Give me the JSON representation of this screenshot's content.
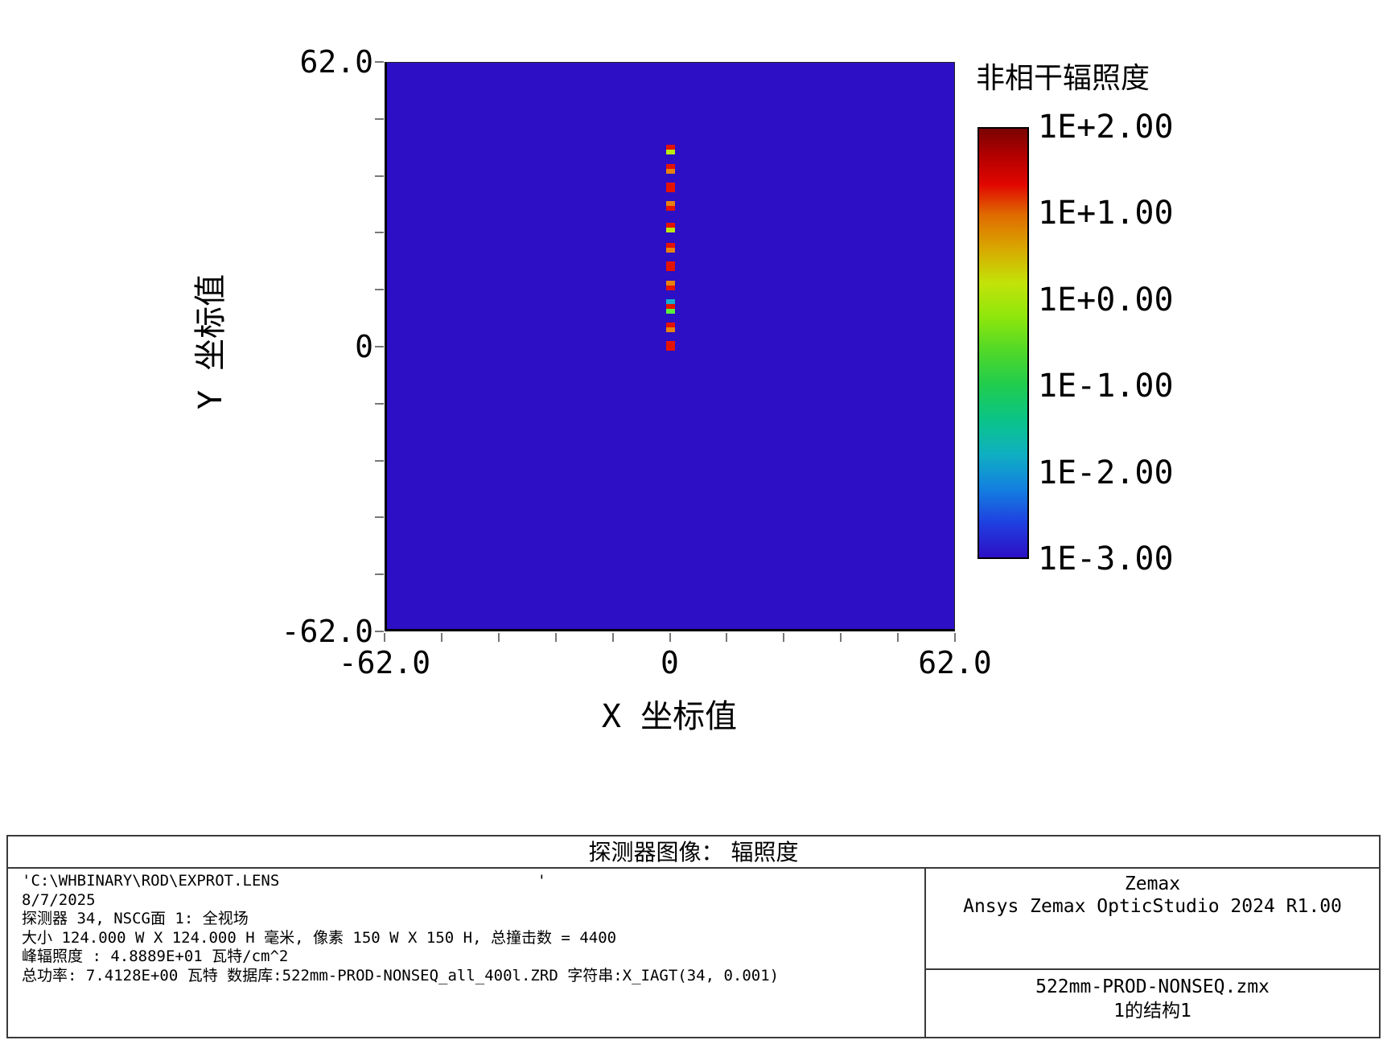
{
  "chart_data": {
    "type": "heatmap",
    "description": "Zemax detector image false-color irradiance map; uniform background below 1E-3 with a vertical column of bright spots near x=0 from y=0 to y=43 mm",
    "xlabel": "X 坐标值",
    "ylabel": "Y 坐标值",
    "xlim": [
      -62.0,
      62.0
    ],
    "ylim": [
      -62.0,
      62.0
    ],
    "x_tick_labels": [
      {
        "value": -62.0,
        "label": "-62.0"
      },
      {
        "value": 0,
        "label": "0"
      },
      {
        "value": 62.0,
        "label": "62.0"
      }
    ],
    "y_tick_labels": [
      {
        "value": 62.0,
        "label": "62.0"
      },
      {
        "value": 0,
        "label": "0"
      },
      {
        "value": -62.0,
        "label": "-62.0"
      }
    ],
    "minor_tick_divisions": 10,
    "background_color": "#2D0FC5",
    "colorbar": {
      "title": "非相干辐照度",
      "scale": "log10",
      "tick_labels": [
        "1E+2.00",
        "1E+1.00",
        "1E+0.00",
        "1E-1.00",
        "1E-2.00",
        "1E-3.00"
      ],
      "gradient_stops": [
        {
          "pos": 0.0,
          "color": "#7A0403"
        },
        {
          "pos": 0.06,
          "color": "#B00000"
        },
        {
          "pos": 0.13,
          "color": "#E10600"
        },
        {
          "pos": 0.2,
          "color": "#E06A00"
        },
        {
          "pos": 0.28,
          "color": "#D8A800"
        },
        {
          "pos": 0.36,
          "color": "#C3E309"
        },
        {
          "pos": 0.44,
          "color": "#8EE60C"
        },
        {
          "pos": 0.52,
          "color": "#4FD829"
        },
        {
          "pos": 0.6,
          "color": "#1FCC4F"
        },
        {
          "pos": 0.68,
          "color": "#0AC488"
        },
        {
          "pos": 0.76,
          "color": "#0FAFC2"
        },
        {
          "pos": 0.84,
          "color": "#1380E0"
        },
        {
          "pos": 0.92,
          "color": "#1F3FE0"
        },
        {
          "pos": 1.0,
          "color": "#2D0FC5"
        }
      ]
    },
    "spots": [
      {
        "x": 0.2,
        "y": 42.7,
        "bands": [
          "#E41300",
          "#BCE813"
        ]
      },
      {
        "x": 0.2,
        "y": 38.6,
        "bands": [
          "#E41300",
          "#E8820E"
        ]
      },
      {
        "x": 0.2,
        "y": 34.5,
        "bands": [
          "#E41300",
          "#E41300"
        ]
      },
      {
        "x": 0.2,
        "y": 30.5,
        "bands": [
          "#E8820E",
          "#E41300"
        ]
      },
      {
        "x": 0.2,
        "y": 25.8,
        "bands": [
          "#E41300",
          "#BCE813"
        ]
      },
      {
        "x": 0.2,
        "y": 21.4,
        "bands": [
          "#E41300",
          "#E8820E"
        ]
      },
      {
        "x": 0.2,
        "y": 17.3,
        "bands": [
          "#E41300",
          "#E41300"
        ]
      },
      {
        "x": 0.2,
        "y": 13.2,
        "bands": [
          "#E8820E",
          "#E41300"
        ]
      },
      {
        "x": 0.2,
        "y": 8.6,
        "bands": [
          "#14AECE",
          "#E41300",
          "#58F03C"
        ]
      },
      {
        "x": 0.2,
        "y": 4.1,
        "bands": [
          "#E41300",
          "#E8820E"
        ]
      },
      {
        "x": 0.2,
        "y": 0.0,
        "bands": [
          "#E41300",
          "#E41300"
        ]
      }
    ]
  },
  "footer": {
    "title": "探测器图像： 辐照度",
    "info_lines": [
      "'C:\\WHBINARY\\ROD\\EXPROT.LENS                            '",
      "8/7/2025",
      "探测器 34, NSCG面 1: 全视场",
      "大小 124.000 W X 124.000 H 毫米, 像素 150 W X 150 H, 总撞击数 = 4400",
      "峰辐照度 : 4.8889E+01 瓦特/cm^2",
      "总功率: 7.4128E+00 瓦特 数据库:522mm-PROD-NONSEQ_all_400l.ZRD 字符串:X_IAGT(34, 0.001)"
    ],
    "brand_line1": "Zemax",
    "brand_line2": "Ansys Zemax OpticStudio 2024 R1.00",
    "file_line1": "522mm-PROD-NONSEQ.zmx",
    "file_line2": "1的结构1"
  }
}
